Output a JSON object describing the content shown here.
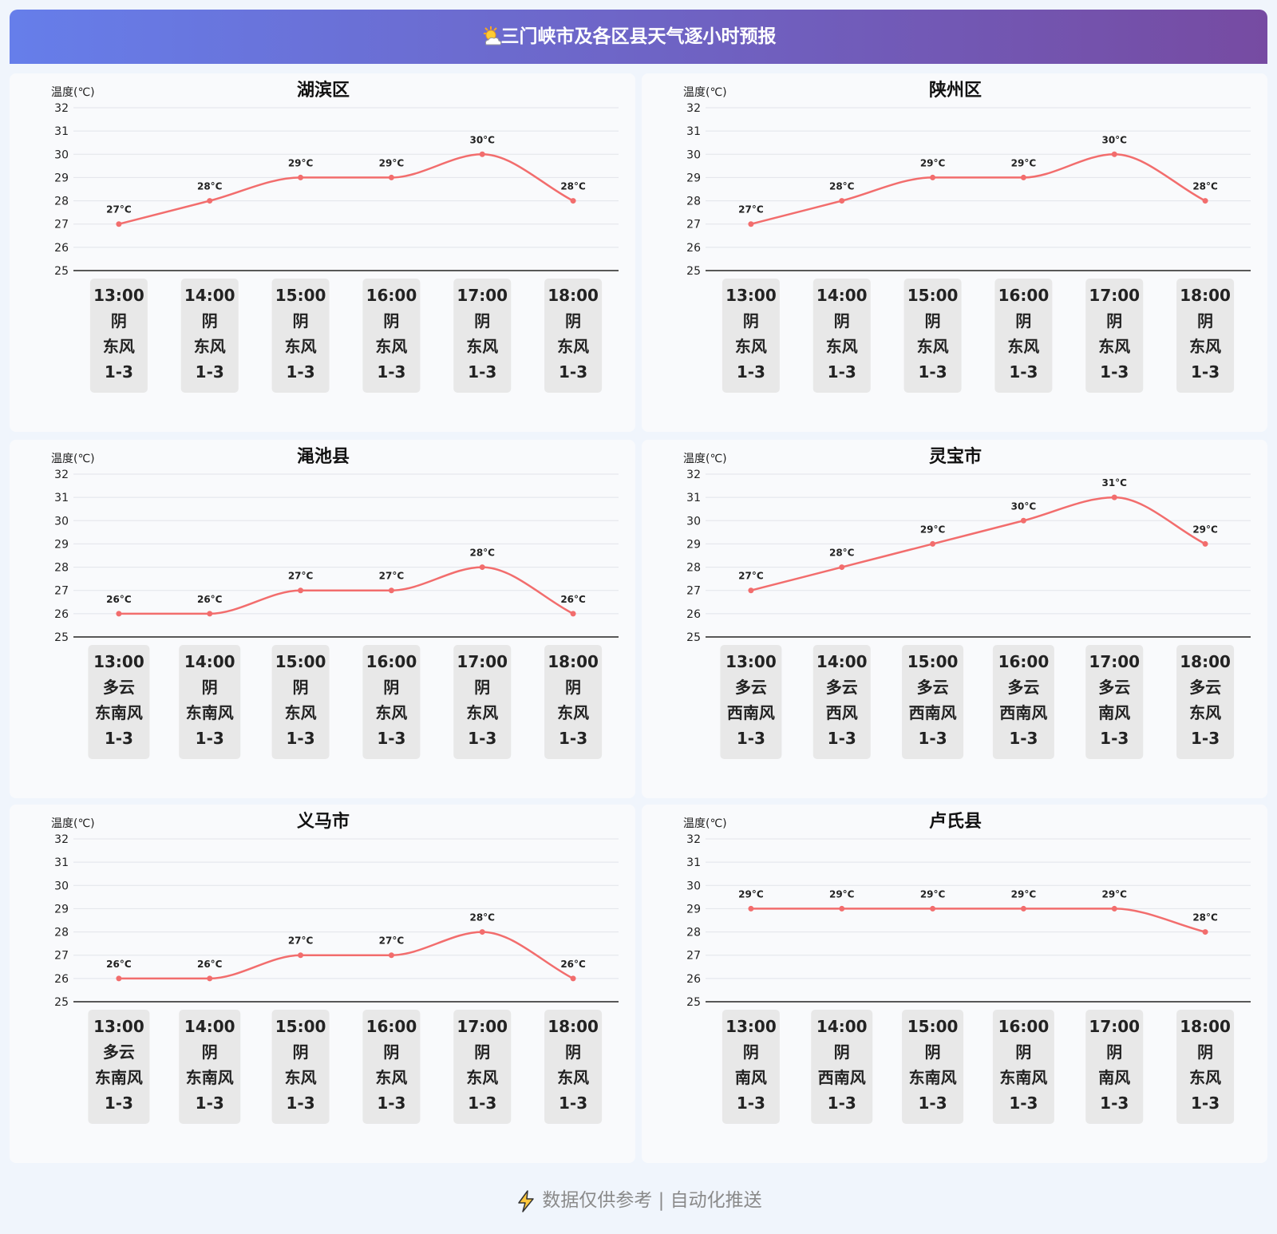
{
  "header": {
    "title": "三门峡市及各区县天气逐小时预报"
  },
  "chart_data": [
    {
      "type": "line",
      "title": "湖滨区",
      "y_label": "温度(℃)",
      "categories": [
        "13:00",
        "14:00",
        "15:00",
        "16:00",
        "17:00",
        "18:00"
      ],
      "values": [
        27,
        28,
        29,
        29,
        30,
        28
      ],
      "value_labels": [
        "27°C",
        "28°C",
        "29°C",
        "29°C",
        "30°C",
        "28°C"
      ],
      "color": "#f26d6d",
      "ylim": [
        25,
        32
      ],
      "yticks": [
        25,
        26,
        27,
        28,
        29,
        30,
        31,
        32
      ],
      "grid": true,
      "smooth": true,
      "weather": [
        "阴",
        "阴",
        "阴",
        "阴",
        "阴",
        "阴"
      ],
      "wind": [
        "东风",
        "东风",
        "东风",
        "东风",
        "东风",
        "东风"
      ],
      "wind_scale": [
        "1-3",
        "1-3",
        "1-3",
        "1-3",
        "1-3",
        "1-3"
      ]
    },
    {
      "type": "line",
      "title": "陕州区",
      "y_label": "温度(℃)",
      "categories": [
        "13:00",
        "14:00",
        "15:00",
        "16:00",
        "17:00",
        "18:00"
      ],
      "values": [
        27,
        28,
        29,
        29,
        30,
        28
      ],
      "value_labels": [
        "27°C",
        "28°C",
        "29°C",
        "29°C",
        "30°C",
        "28°C"
      ],
      "color": "#f26d6d",
      "ylim": [
        25,
        32
      ],
      "yticks": [
        25,
        26,
        27,
        28,
        29,
        30,
        31,
        32
      ],
      "grid": true,
      "smooth": true,
      "weather": [
        "阴",
        "阴",
        "阴",
        "阴",
        "阴",
        "阴"
      ],
      "wind": [
        "东风",
        "东风",
        "东风",
        "东风",
        "东风",
        "东风"
      ],
      "wind_scale": [
        "1-3",
        "1-3",
        "1-3",
        "1-3",
        "1-3",
        "1-3"
      ]
    },
    {
      "type": "line",
      "title": "渑池县",
      "y_label": "温度(℃)",
      "categories": [
        "13:00",
        "14:00",
        "15:00",
        "16:00",
        "17:00",
        "18:00"
      ],
      "values": [
        26,
        26,
        27,
        27,
        28,
        26
      ],
      "value_labels": [
        "26°C",
        "26°C",
        "27°C",
        "27°C",
        "28°C",
        "26°C"
      ],
      "color": "#f26d6d",
      "ylim": [
        25,
        32
      ],
      "yticks": [
        25,
        26,
        27,
        28,
        29,
        30,
        31,
        32
      ],
      "grid": true,
      "smooth": true,
      "weather": [
        "多云",
        "阴",
        "阴",
        "阴",
        "阴",
        "阴"
      ],
      "wind": [
        "东南风",
        "东南风",
        "东风",
        "东风",
        "东风",
        "东风"
      ],
      "wind_scale": [
        "1-3",
        "1-3",
        "1-3",
        "1-3",
        "1-3",
        "1-3"
      ]
    },
    {
      "type": "line",
      "title": "灵宝市",
      "y_label": "温度(℃)",
      "categories": [
        "13:00",
        "14:00",
        "15:00",
        "16:00",
        "17:00",
        "18:00"
      ],
      "values": [
        27,
        28,
        29,
        30,
        31,
        29
      ],
      "value_labels": [
        "27°C",
        "28°C",
        "29°C",
        "30°C",
        "31°C",
        "29°C"
      ],
      "color": "#f26d6d",
      "ylim": [
        25,
        32
      ],
      "yticks": [
        25,
        26,
        27,
        28,
        29,
        30,
        31,
        32
      ],
      "grid": true,
      "smooth": true,
      "weather": [
        "多云",
        "多云",
        "多云",
        "多云",
        "多云",
        "多云"
      ],
      "wind": [
        "西南风",
        "西风",
        "西南风",
        "西南风",
        "南风",
        "东风"
      ],
      "wind_scale": [
        "1-3",
        "1-3",
        "1-3",
        "1-3",
        "1-3",
        "1-3"
      ]
    },
    {
      "type": "line",
      "title": "义马市",
      "y_label": "温度(℃)",
      "categories": [
        "13:00",
        "14:00",
        "15:00",
        "16:00",
        "17:00",
        "18:00"
      ],
      "values": [
        26,
        26,
        27,
        27,
        28,
        26
      ],
      "value_labels": [
        "26°C",
        "26°C",
        "27°C",
        "27°C",
        "28°C",
        "26°C"
      ],
      "color": "#f26d6d",
      "ylim": [
        25,
        32
      ],
      "yticks": [
        25,
        26,
        27,
        28,
        29,
        30,
        31,
        32
      ],
      "grid": true,
      "smooth": true,
      "weather": [
        "多云",
        "阴",
        "阴",
        "阴",
        "阴",
        "阴"
      ],
      "wind": [
        "东南风",
        "东南风",
        "东风",
        "东风",
        "东风",
        "东风"
      ],
      "wind_scale": [
        "1-3",
        "1-3",
        "1-3",
        "1-3",
        "1-3",
        "1-3"
      ]
    },
    {
      "type": "line",
      "title": "卢氏县",
      "y_label": "温度(℃)",
      "categories": [
        "13:00",
        "14:00",
        "15:00",
        "16:00",
        "17:00",
        "18:00"
      ],
      "values": [
        29,
        29,
        29,
        29,
        29,
        28
      ],
      "value_labels": [
        "29°C",
        "29°C",
        "29°C",
        "29°C",
        "29°C",
        "28°C"
      ],
      "color": "#f26d6d",
      "ylim": [
        25,
        32
      ],
      "yticks": [
        25,
        26,
        27,
        28,
        29,
        30,
        31,
        32
      ],
      "grid": true,
      "smooth": true,
      "weather": [
        "阴",
        "阴",
        "阴",
        "阴",
        "阴",
        "阴"
      ],
      "wind": [
        "南风",
        "西南风",
        "东南风",
        "东南风",
        "南风",
        "东风"
      ],
      "wind_scale": [
        "1-3",
        "1-3",
        "1-3",
        "1-3",
        "1-3",
        "1-3"
      ]
    }
  ],
  "footer": {
    "text": "数据仅供参考 | 自动化推送"
  }
}
